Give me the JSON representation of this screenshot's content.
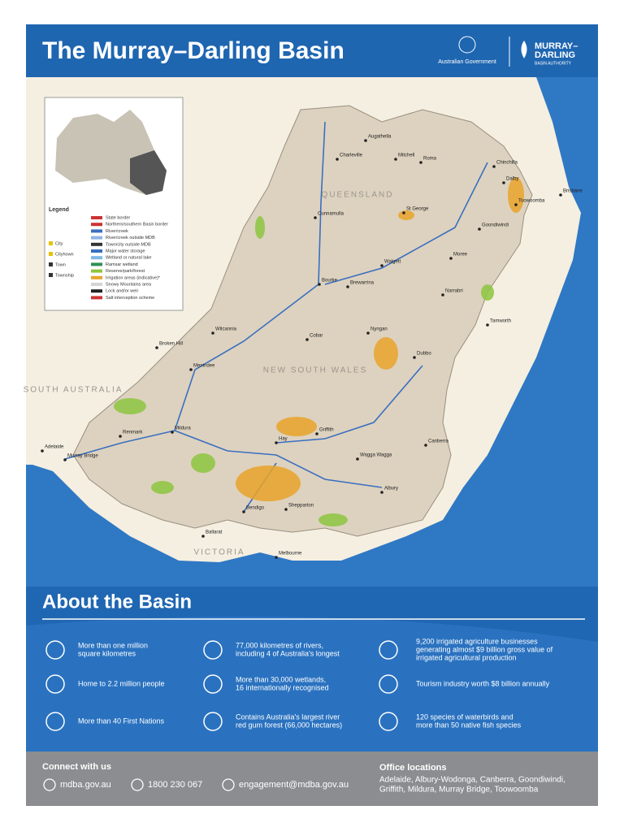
{
  "header": {
    "title": "The Murray–Darling Basin",
    "government": "Australian Government",
    "org": [
      "MURRAY–",
      "DARLING",
      "BASIN AUTHORITY"
    ]
  },
  "map": {
    "legend_title": "Legend",
    "legend": [
      "State border",
      "Northern/southern Basin border",
      "River/creek",
      "River/creek outside MDB",
      "Town/city outside MDB",
      "Major water storage",
      "Wetland or natural lake",
      "Ramsar wetland",
      "Reserve/park/forest",
      "Irrigation areas (indicative)*",
      "Snowy Mountains area",
      "Lock and/or weir",
      "Salt interception scheme"
    ],
    "settlements": [
      "City",
      "Cityhown",
      "Town",
      "Township"
    ],
    "states": [
      "QUEENSLAND",
      "NEW SOUTH WALES",
      "SOUTH AUSTRALIA",
      "VICTORIA"
    ],
    "towns": [
      "Charleville",
      "Augathella",
      "Mitchell",
      "Roma",
      "Chinchilla",
      "Dalby",
      "Toowoomba",
      "Brisbane",
      "Cunnamulla",
      "St George",
      "Goondiwindi",
      "Bourke",
      "Brewarrina",
      "Walgett",
      "Moree",
      "Narrabri",
      "Tamworth",
      "Broken Hill",
      "Wilcannia",
      "Menindee",
      "Cobar",
      "Nyngan",
      "Dubbo",
      "Mildura",
      "Renmark",
      "Hay",
      "Griffith",
      "Wagga Wagga",
      "Canberra",
      "Albury",
      "Shepparton",
      "Bendigo",
      "Ballarat",
      "Melbourne",
      "Adelaide",
      "Murray Bridge"
    ]
  },
  "about": {
    "heading": "About the Basin",
    "facts": [
      [
        "More than one million",
        "square kilometres"
      ],
      [
        "77,000 kilometres of rivers,",
        "including 4 of Australia's longest"
      ],
      [
        "9,200 irrigated agriculture businesses",
        "generating almost $9 billion gross value of",
        "irrigated agricultural production"
      ],
      [
        "Home to 2.2 million people"
      ],
      [
        "More than 30,000 wetlands,",
        "16 internationally recognised"
      ],
      [
        "Tourism industry worth $8 billion annually"
      ],
      [
        "More than 40 First Nations"
      ],
      [
        "Contains Australia's largest river",
        "red gum forest (66,000 hectares)"
      ],
      [
        "120 species of waterbirds and",
        "more than 50 native fish species"
      ]
    ]
  },
  "footer": {
    "connect": "Connect with us",
    "contacts": [
      "mdba.gov.au",
      "1800 230 067",
      "engagement@mdba.gov.au"
    ],
    "offices_title": "Office locations",
    "offices": [
      "Adelaide, Albury-Wodonga, Canberra, Goondiwindi,",
      "Griffith, Mildura, Murray Bridge, Toowoomba"
    ]
  }
}
